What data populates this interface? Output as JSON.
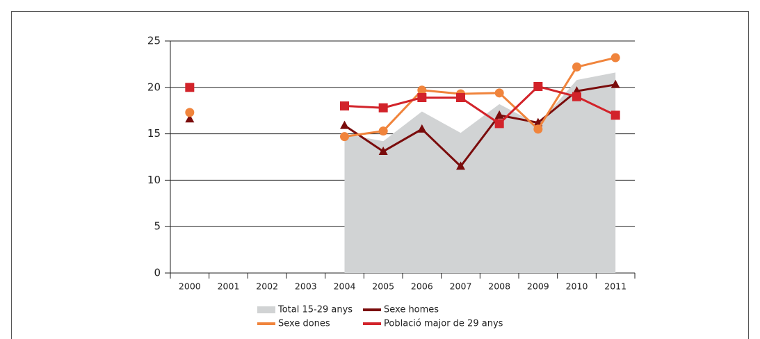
{
  "chart_data": {
    "type": "line",
    "categories": [
      "2000",
      "2001",
      "2002",
      "2003",
      "2004",
      "2005",
      "2006",
      "2007",
      "2008",
      "2009",
      "2010",
      "2011"
    ],
    "series": [
      {
        "name": "Total 15-29 anys",
        "kind": "area",
        "color": "#d1d3d4",
        "values": [
          null,
          null,
          null,
          null,
          15.0,
          14.2,
          17.4,
          15.1,
          18.2,
          16.0,
          20.8,
          21.6
        ]
      },
      {
        "name": "Sexe homes",
        "kind": "line",
        "marker": "triangle",
        "color": "#7a0c0c",
        "values": [
          16.6,
          null,
          null,
          null,
          15.9,
          13.1,
          15.5,
          11.5,
          17.0,
          16.2,
          19.6,
          20.3
        ]
      },
      {
        "name": "Sexe dones",
        "kind": "line",
        "marker": "circle",
        "color": "#f0843c",
        "values": [
          17.3,
          null,
          null,
          null,
          14.7,
          15.3,
          19.7,
          19.3,
          19.4,
          15.5,
          22.2,
          23.2
        ]
      },
      {
        "name": "Població major de 29 anys",
        "kind": "line",
        "marker": "square",
        "color": "#d2232a",
        "values": [
          20.0,
          null,
          null,
          null,
          18.0,
          17.8,
          18.9,
          18.9,
          16.1,
          20.1,
          19.0,
          17.0
        ]
      }
    ],
    "ylim": [
      0,
      25
    ],
    "yticks": [
      0,
      5,
      10,
      15,
      20,
      25
    ],
    "grid": true
  }
}
